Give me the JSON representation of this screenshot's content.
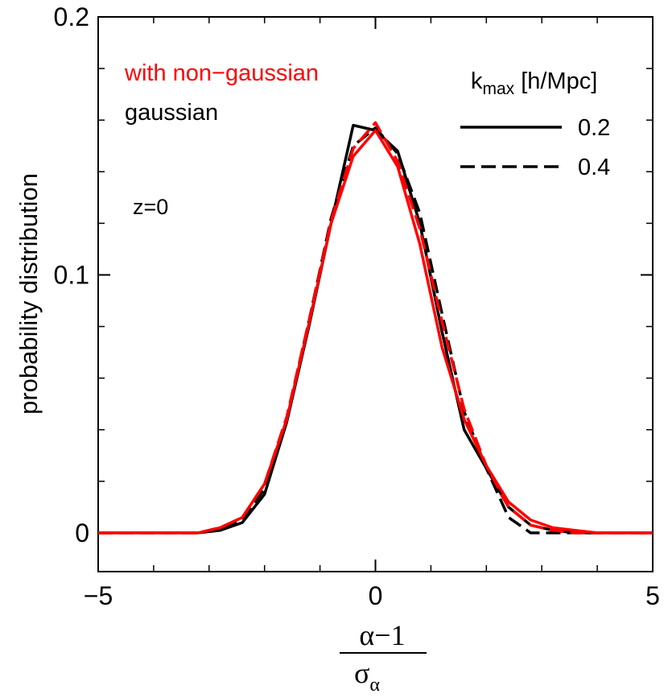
{
  "chart_data": {
    "type": "line",
    "ylabel": "probability distribution",
    "xlabel": {
      "numerator": "α−1",
      "denominator_symbol": "σ",
      "denominator_subscript": "α"
    },
    "xlim": [
      -5,
      5
    ],
    "ylim": [
      -0.015,
      0.2
    ],
    "xticks": [
      {
        "value": -5,
        "label": "−5"
      },
      {
        "value": 0,
        "label": "0"
      },
      {
        "value": 5,
        "label": "5"
      }
    ],
    "yticks": [
      {
        "value": 0,
        "label": "0"
      },
      {
        "value": 0.1,
        "label": "0.1"
      },
      {
        "value": 0.2,
        "label": "0.2"
      }
    ],
    "xminor": [
      -4,
      -3,
      -2,
      -1,
      1,
      2,
      3,
      4
    ],
    "yminor": [
      0.02,
      0.04,
      0.06,
      0.08,
      0.12,
      0.14,
      0.16,
      0.18
    ],
    "annotations": {
      "nongauss_label": "with non−gaussian",
      "gauss_label": "gaussian",
      "z_label": "z=0",
      "legend_title_k": "k",
      "legend_title_sub": "max",
      "legend_title_unit": " [h/Mpc]",
      "legend_solid_label": "0.2",
      "legend_dashed_label": "0.4"
    },
    "colors": {
      "gaussian": "#000000",
      "non_gaussian": "#ff0000"
    },
    "series": [
      {
        "color": "#000000",
        "dash": "solid",
        "x": [
          -5,
          -3.2,
          -2.8,
          -2.4,
          -2.0,
          -1.6,
          -1.2,
          -0.8,
          -0.4,
          0.0,
          0.4,
          0.8,
          1.2,
          1.6,
          2.0,
          2.4,
          2.8,
          3.2,
          3.6,
          4.0,
          5
        ],
        "y": [
          0,
          0,
          0.001,
          0.004,
          0.015,
          0.043,
          0.08,
          0.12,
          0.158,
          0.156,
          0.148,
          0.12,
          0.078,
          0.04,
          0.025,
          0.01,
          0.003,
          0.001,
          0,
          0,
          0
        ]
      },
      {
        "color": "#000000",
        "dash": "dashed",
        "x": [
          -5,
          -3.2,
          -2.8,
          -2.4,
          -2.0,
          -1.6,
          -1.2,
          -0.8,
          -0.4,
          0.0,
          0.4,
          0.8,
          1.2,
          1.6,
          2.0,
          2.4,
          2.8,
          3.2,
          3.6,
          4.0,
          5
        ],
        "y": [
          0,
          0,
          0.002,
          0.005,
          0.017,
          0.044,
          0.082,
          0.122,
          0.15,
          0.157,
          0.147,
          0.124,
          0.085,
          0.047,
          0.025,
          0.006,
          0.0,
          0,
          0,
          0,
          0
        ]
      },
      {
        "color": "#ff0000",
        "dash": "solid",
        "x": [
          -5,
          -3.2,
          -2.8,
          -2.4,
          -2.0,
          -1.6,
          -1.2,
          -0.8,
          -0.4,
          0.0,
          0.4,
          0.8,
          1.2,
          1.6,
          2.0,
          2.4,
          2.8,
          3.2,
          3.6,
          4.0,
          5
        ],
        "y": [
          0,
          0,
          0.002,
          0.006,
          0.019,
          0.044,
          0.081,
          0.12,
          0.146,
          0.156,
          0.142,
          0.112,
          0.072,
          0.044,
          0.026,
          0.012,
          0.005,
          0.002,
          0.001,
          0,
          0
        ]
      },
      {
        "color": "#ff0000",
        "dash": "dashed",
        "x": [
          -5,
          -3.2,
          -2.8,
          -2.4,
          -2.0,
          -1.6,
          -1.2,
          -0.8,
          -0.4,
          0.0,
          0.4,
          0.8,
          1.2,
          1.6,
          2.0,
          2.4,
          2.8,
          3.2,
          3.6,
          4.0,
          5
        ],
        "y": [
          0,
          0,
          0.002,
          0.006,
          0.019,
          0.045,
          0.082,
          0.121,
          0.149,
          0.159,
          0.144,
          0.118,
          0.082,
          0.048,
          0.026,
          0.01,
          0.003,
          0.001,
          0,
          0,
          0
        ]
      }
    ]
  }
}
